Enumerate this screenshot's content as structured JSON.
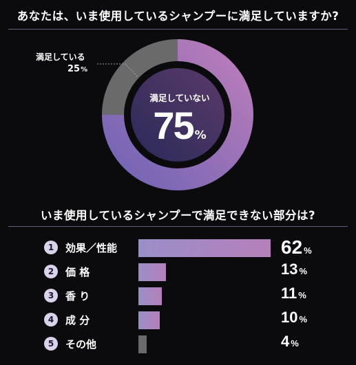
{
  "colors": {
    "background": "#0b0a0d",
    "bar_gradient_start": "#9a8fc8",
    "bar_gradient_end": "#b57fba",
    "other_bar": "#6a6a6a",
    "donut_satisfied": "#6a6a6a",
    "donut_dissatisfied_start": "#6a62b4",
    "donut_dissatisfied_end": "#c27fba",
    "donut_center": "#2d2a52",
    "divider": "#8f7fb0"
  },
  "chart_data": [
    {
      "type": "pie",
      "title": "あなたは、いま使用しているシャンプーに満足していますか?",
      "categories": [
        "満足している",
        "満足していない"
      ],
      "values": [
        25,
        75
      ],
      "unit": "%",
      "callout_label": "満足している",
      "callout_value": "25",
      "center_label": "満足していない",
      "center_value": "75"
    },
    {
      "type": "bar",
      "title": "いま使用しているシャンプーで満足できない部分は?",
      "unit": "%",
      "categories": [
        "効果／性能",
        "価 格",
        "香 り",
        "成 分",
        "その他"
      ],
      "numbers": [
        "1",
        "2",
        "3",
        "4",
        "5"
      ],
      "values": [
        62,
        13,
        11,
        10,
        4
      ]
    }
  ]
}
